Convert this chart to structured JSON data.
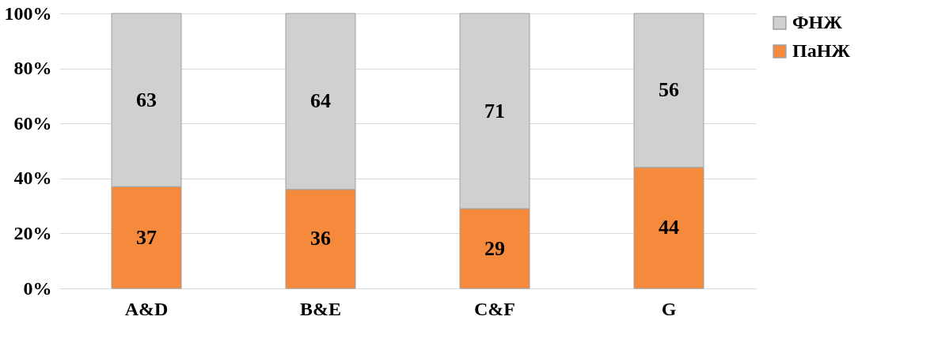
{
  "chart_data": {
    "type": "bar",
    "stacked": true,
    "categories": [
      "A&D",
      "B&E",
      "C&F",
      "G"
    ],
    "series": [
      {
        "name": "ПаНЖ",
        "color": "#f58a3c",
        "values": [
          37,
          36,
          29,
          44
        ]
      },
      {
        "name": "ФНЖ",
        "color": "#d0d0d0",
        "values": [
          63,
          64,
          71,
          56
        ]
      }
    ],
    "ylim": [
      0,
      100
    ],
    "yticks": [
      {
        "value": 0,
        "label": "0%"
      },
      {
        "value": 20,
        "label": "20%"
      },
      {
        "value": 40,
        "label": "40%"
      },
      {
        "value": 60,
        "label": "60%"
      },
      {
        "value": 80,
        "label": "80%"
      },
      {
        "value": 100,
        "label": "100%"
      }
    ],
    "grid": "y",
    "legend": "right",
    "data_labels": true
  }
}
